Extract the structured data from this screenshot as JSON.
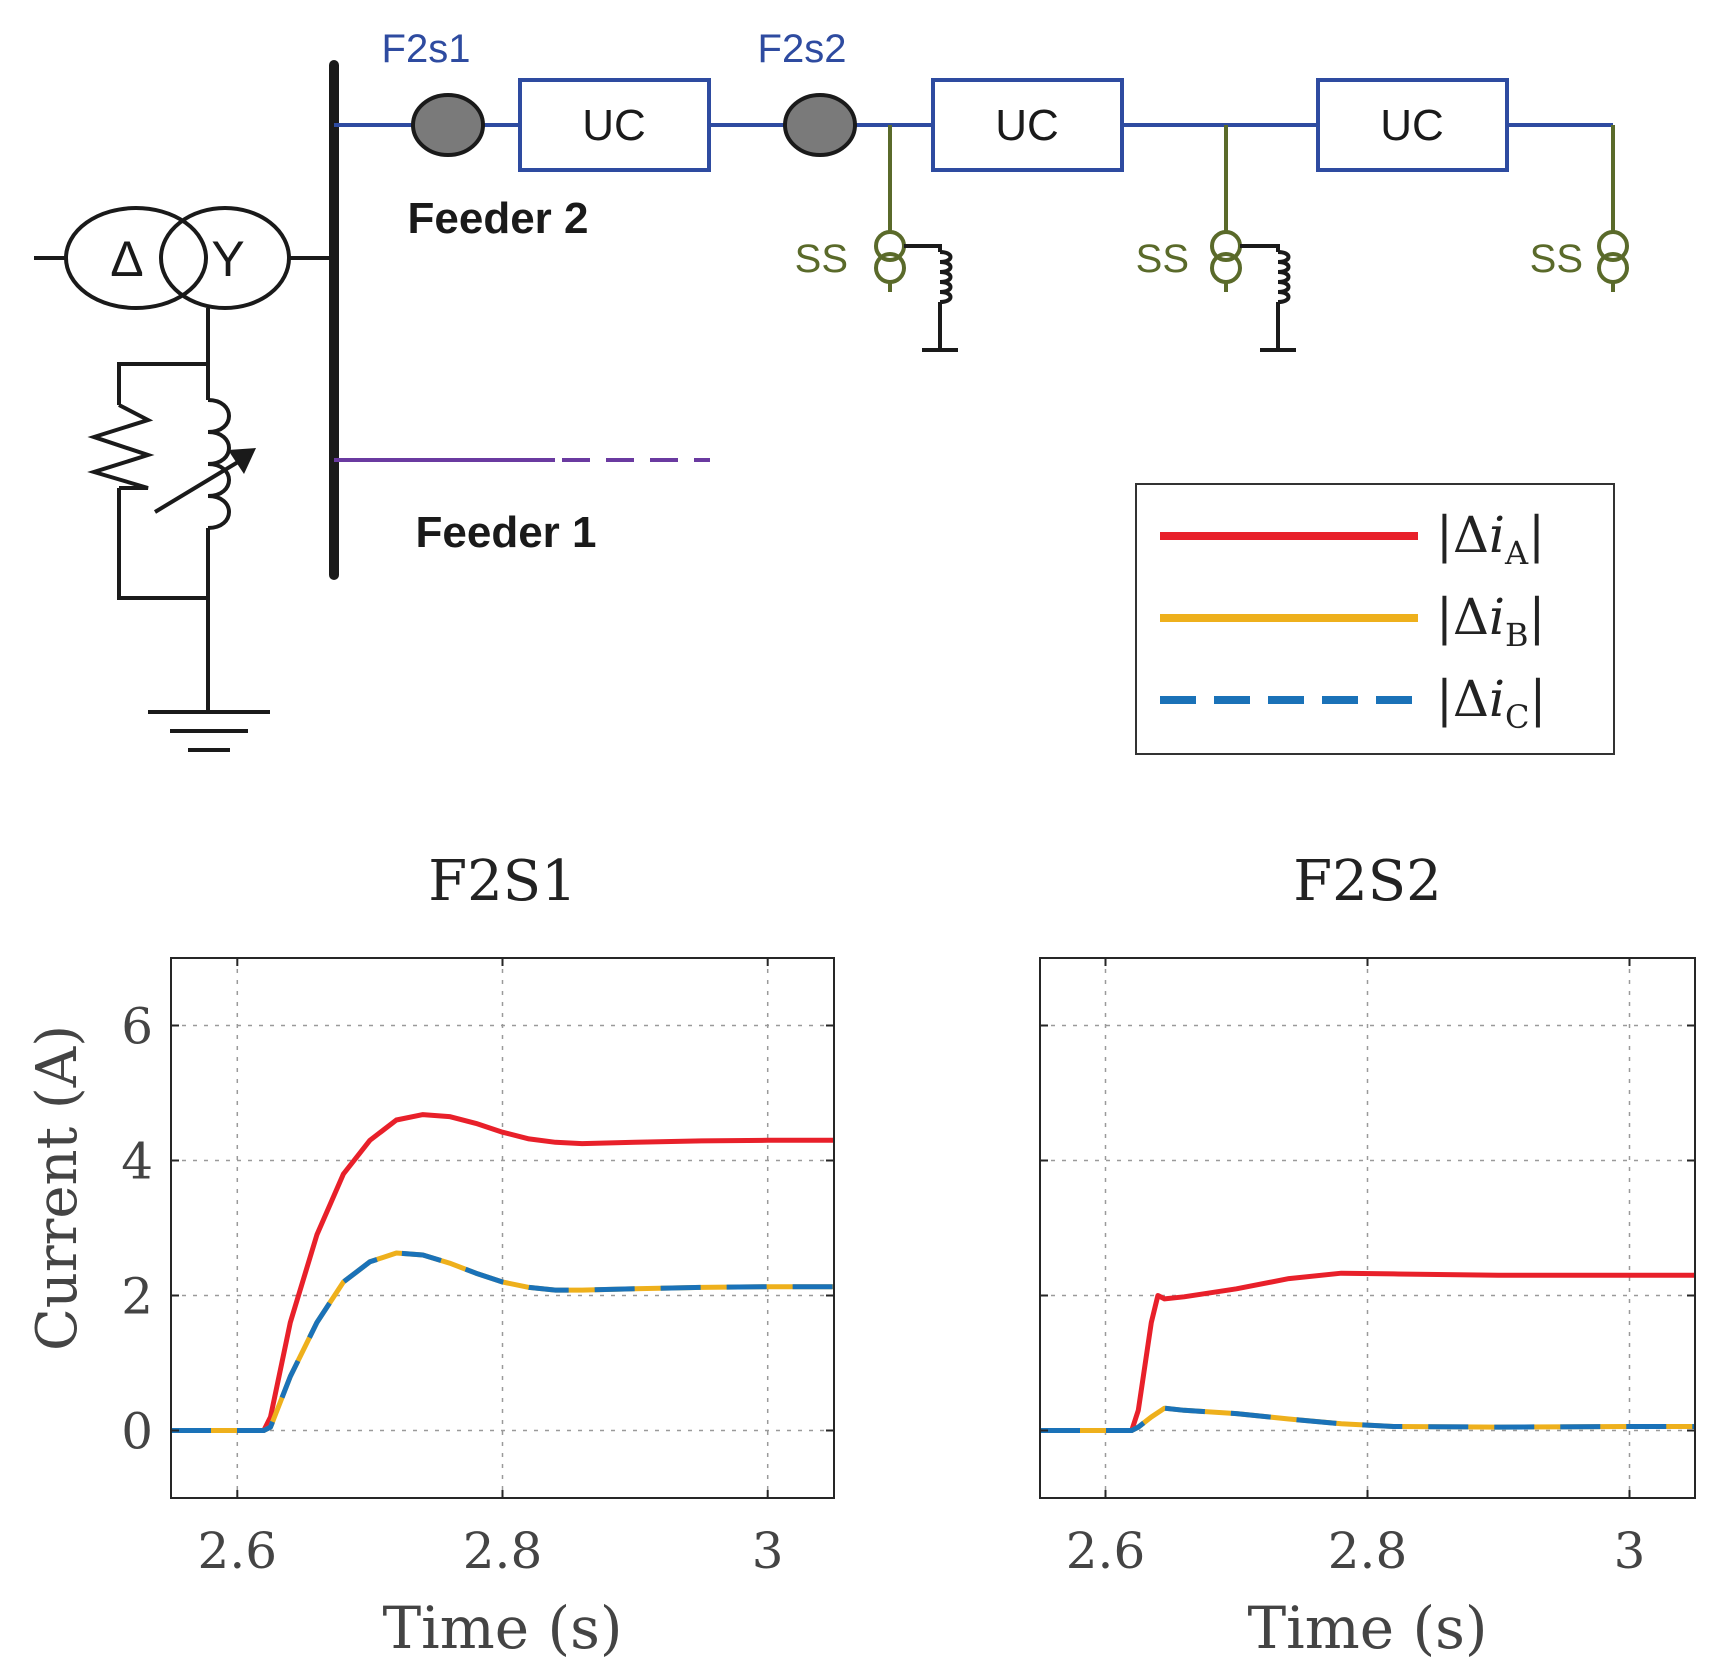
{
  "diagram": {
    "sensor_labels": [
      "F2s1",
      "F2s2"
    ],
    "uc_labels": [
      "UC",
      "UC",
      "UC"
    ],
    "feeder2_label": "Feeder 2",
    "feeder1_label": "Feeder 1",
    "ss_labels": [
      "SS",
      "SS",
      "SS"
    ],
    "delta_label": "Δ",
    "wye_label": "Y",
    "colors": {
      "feeder2": "#2e4ba0",
      "feeder1": "#6a3aa0",
      "ss": "#5a6a2a",
      "sensor_fill": "#7a7a7a",
      "black": "#1a1a1a"
    }
  },
  "legend": {
    "entries": [
      {
        "delta": "|Δ",
        "i": "i",
        "sub": "A",
        "bar": "|",
        "color": "#e8202a",
        "style": "solid"
      },
      {
        "delta": "|Δ",
        "i": "i",
        "sub": "B",
        "bar": "|",
        "color": "#eeb01c",
        "style": "solid"
      },
      {
        "delta": "|Δ",
        "i": "i",
        "sub": "C",
        "bar": "|",
        "color": "#1a72b8",
        "style": "dashed"
      }
    ]
  },
  "chart_data": [
    {
      "type": "line",
      "title": "F2S1",
      "xlabel": "Time (s)",
      "ylabel": "Current (A)",
      "xlim": [
        2.55,
        3.05
      ],
      "ylim": [
        -1,
        7
      ],
      "xticks": [
        "2.6",
        "2.8",
        "3"
      ],
      "xtick_values": [
        2.6,
        2.8,
        3.0
      ],
      "yticks": [
        "0",
        "2",
        "4",
        "6"
      ],
      "ytick_values": [
        0,
        2,
        4,
        6
      ],
      "grid": true,
      "series": [
        {
          "name": "|ΔiA|",
          "color": "#e8202a",
          "style": "solid",
          "x": [
            2.55,
            2.62,
            2.625,
            2.64,
            2.66,
            2.68,
            2.7,
            2.72,
            2.74,
            2.76,
            2.78,
            2.8,
            2.82,
            2.84,
            2.86,
            2.9,
            2.95,
            3.0,
            3.05
          ],
          "y": [
            0,
            0,
            0.2,
            1.6,
            2.9,
            3.8,
            4.3,
            4.6,
            4.68,
            4.65,
            4.55,
            4.42,
            4.32,
            4.27,
            4.25,
            4.27,
            4.29,
            4.3,
            4.3
          ]
        },
        {
          "name": "|ΔiB|",
          "color": "#eeb01c",
          "style": "solid",
          "x": [
            2.55,
            2.62,
            2.625,
            2.64,
            2.66,
            2.68,
            2.7,
            2.72,
            2.74,
            2.76,
            2.78,
            2.8,
            2.82,
            2.84,
            2.86,
            2.9,
            2.95,
            3.0,
            3.05
          ],
          "y": [
            0,
            0,
            0.05,
            0.8,
            1.6,
            2.2,
            2.5,
            2.63,
            2.6,
            2.48,
            2.33,
            2.2,
            2.12,
            2.08,
            2.08,
            2.1,
            2.12,
            2.13,
            2.13
          ]
        },
        {
          "name": "|ΔiC|",
          "color": "#1a72b8",
          "style": "dashed",
          "x": [
            2.55,
            2.62,
            2.625,
            2.64,
            2.66,
            2.68,
            2.7,
            2.72,
            2.74,
            2.76,
            2.78,
            2.8,
            2.82,
            2.84,
            2.86,
            2.9,
            2.95,
            3.0,
            3.05
          ],
          "y": [
            0,
            0,
            0.05,
            0.8,
            1.6,
            2.2,
            2.5,
            2.63,
            2.6,
            2.48,
            2.33,
            2.2,
            2.12,
            2.08,
            2.08,
            2.1,
            2.12,
            2.13,
            2.13
          ]
        }
      ]
    },
    {
      "type": "line",
      "title": "F2S2",
      "xlabel": "Time (s)",
      "ylabel": "",
      "xlim": [
        2.55,
        3.05
      ],
      "ylim": [
        -1,
        7
      ],
      "xticks": [
        "2.6",
        "2.8",
        "3"
      ],
      "xtick_values": [
        2.6,
        2.8,
        3.0
      ],
      "yticks": [],
      "ytick_values": [
        0,
        2,
        4,
        6
      ],
      "grid": true,
      "series": [
        {
          "name": "|ΔiA|",
          "color": "#e8202a",
          "style": "solid",
          "x": [
            2.55,
            2.62,
            2.625,
            2.635,
            2.64,
            2.645,
            2.66,
            2.7,
            2.74,
            2.78,
            2.82,
            2.9,
            3.0,
            3.05
          ],
          "y": [
            0,
            0,
            0.3,
            1.6,
            2.0,
            1.95,
            1.98,
            2.1,
            2.25,
            2.33,
            2.32,
            2.3,
            2.3,
            2.3
          ]
        },
        {
          "name": "|ΔiB|",
          "color": "#eeb01c",
          "style": "solid",
          "x": [
            2.55,
            2.62,
            2.625,
            2.635,
            2.645,
            2.66,
            2.7,
            2.74,
            2.78,
            2.82,
            2.9,
            3.0,
            3.05
          ],
          "y": [
            0,
            0,
            0.05,
            0.2,
            0.33,
            0.3,
            0.25,
            0.17,
            0.1,
            0.06,
            0.05,
            0.06,
            0.06
          ]
        },
        {
          "name": "|ΔiC|",
          "color": "#1a72b8",
          "style": "dashed",
          "x": [
            2.55,
            2.62,
            2.625,
            2.635,
            2.645,
            2.66,
            2.7,
            2.74,
            2.78,
            2.82,
            2.9,
            3.0,
            3.05
          ],
          "y": [
            0,
            0,
            0.05,
            0.2,
            0.33,
            0.3,
            0.25,
            0.17,
            0.1,
            0.06,
            0.05,
            0.06,
            0.06
          ]
        }
      ]
    }
  ]
}
